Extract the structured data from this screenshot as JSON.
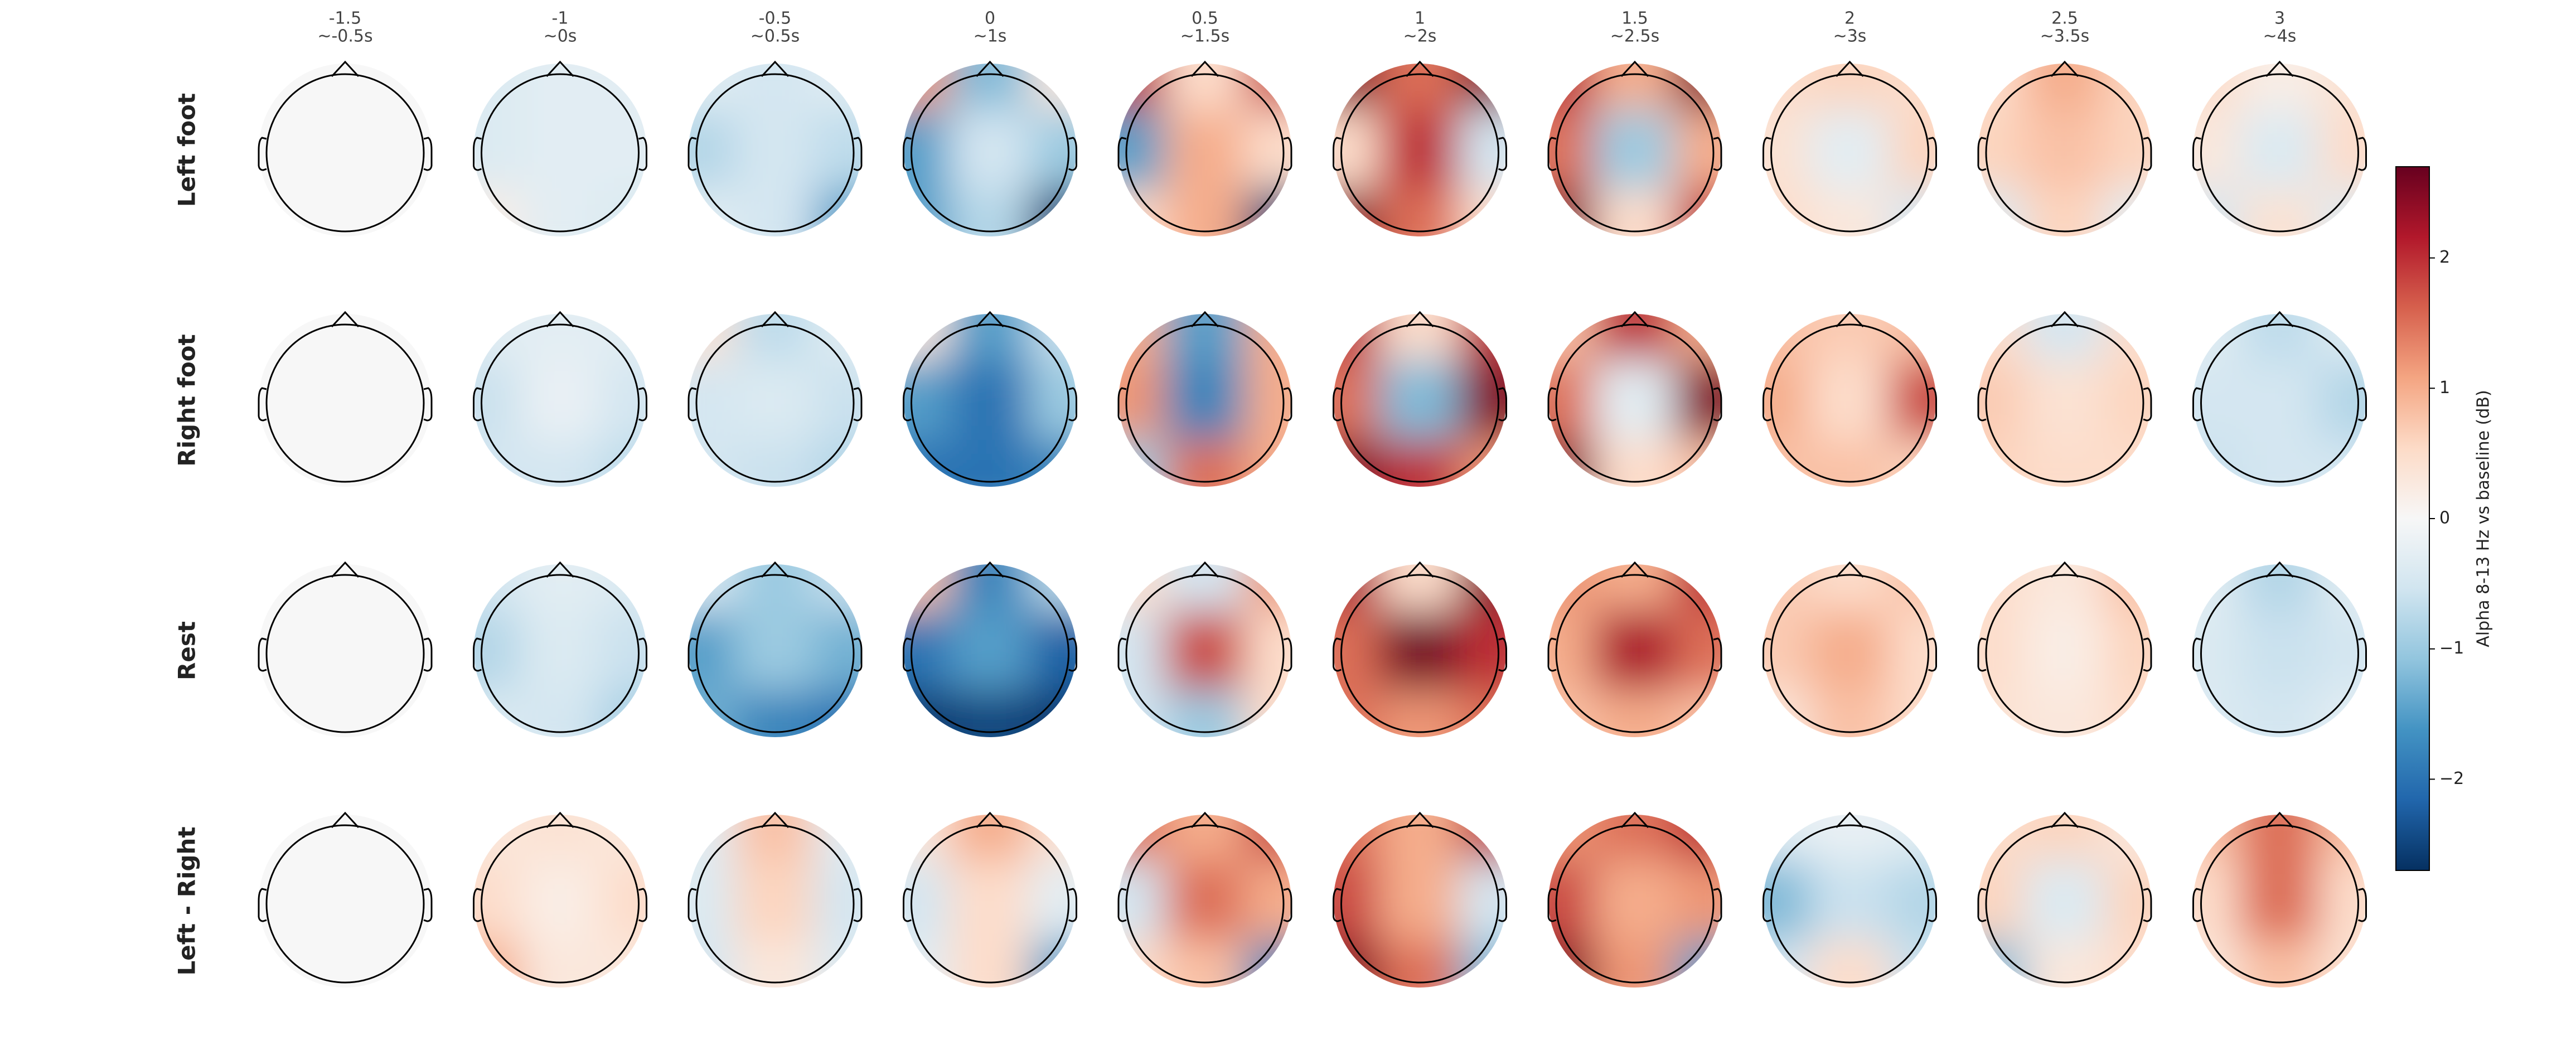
{
  "chart_data": {
    "type": "topomap",
    "columns": [
      {
        "time": "-1.5",
        "window": "~-0.5s"
      },
      {
        "time": "-1",
        "window": "~0s"
      },
      {
        "time": "-0.5",
        "window": "~0.5s"
      },
      {
        "time": "0",
        "window": "~1s"
      },
      {
        "time": "0.5",
        "window": "~1.5s"
      },
      {
        "time": "1",
        "window": "~2s"
      },
      {
        "time": "1.5",
        "window": "~2.5s"
      },
      {
        "time": "2",
        "window": "~3s"
      },
      {
        "time": "2.5",
        "window": "~3.5s"
      },
      {
        "time": "3",
        "window": "~4s"
      }
    ],
    "rows": [
      "Left foot",
      "Right foot",
      "Rest",
      "Left - Right"
    ],
    "maps": [
      [
        [
          0,
          0,
          0,
          0,
          0,
          0,
          0,
          0,
          0
        ],
        [
          -0.4,
          -0.3,
          -0.3,
          -0.4,
          -0.3,
          -0.3,
          0.2,
          -0.3,
          -0.4
        ],
        [
          -0.3,
          -0.5,
          -0.3,
          -0.8,
          -0.5,
          -0.7,
          -0.3,
          -0.5,
          -1.5
        ],
        [
          1.2,
          -1.2,
          0.3,
          -1.5,
          -0.5,
          -1.0,
          -1.5,
          -0.8,
          -2.6
        ],
        [
          2.0,
          0.5,
          1.8,
          -1.5,
          1.0,
          0.5,
          0.5,
          1.0,
          -2.5
        ],
        [
          2.5,
          1.5,
          2.5,
          0.5,
          2.0,
          -0.5,
          2.5,
          1.5,
          0.5
        ],
        [
          2.0,
          1.0,
          2.5,
          1.5,
          -1.0,
          1.0,
          2.5,
          0.5,
          2.0
        ],
        [
          0.5,
          0.6,
          0.5,
          0.4,
          -0.3,
          0.6,
          0.5,
          0.3,
          -0.5
        ],
        [
          0.5,
          1.0,
          0.6,
          0.6,
          0.8,
          0.6,
          -0.4,
          0.6,
          -0.3
        ],
        [
          0.5,
          0.2,
          0.4,
          0.3,
          -0.4,
          0.5,
          -0.5,
          0.4,
          -0.4
        ]
      ],
      [
        [
          0,
          0,
          0,
          0,
          0,
          0,
          0,
          0,
          0
        ],
        [
          -0.3,
          -0.3,
          -0.3,
          -0.6,
          -0.2,
          -0.5,
          -0.5,
          -0.5,
          -0.7
        ],
        [
          0.4,
          -0.7,
          -0.3,
          -0.5,
          -0.4,
          -0.6,
          -0.5,
          -0.6,
          -0.8
        ],
        [
          0.3,
          -1.5,
          -0.6,
          -1.5,
          -2.0,
          -1.0,
          -2.0,
          -2.0,
          -1.8
        ],
        [
          1.0,
          -1.5,
          1.0,
          1.2,
          -1.8,
          1.0,
          -1.0,
          1.5,
          1.0
        ],
        [
          2.0,
          0.5,
          2.0,
          1.5,
          -1.2,
          2.5,
          2.5,
          2.0,
          1.2
        ],
        [
          0.8,
          2.0,
          1.0,
          1.5,
          -0.3,
          2.5,
          2.5,
          0.5,
          0.8
        ],
        [
          0.8,
          0.7,
          0.8,
          1.0,
          0.5,
          1.8,
          0.8,
          0.8,
          0.6
        ],
        [
          0.5,
          -0.5,
          0.5,
          0.7,
          0.4,
          0.6,
          0.6,
          0.5,
          0.5
        ],
        [
          -0.3,
          -0.7,
          -0.3,
          -0.5,
          -0.5,
          -0.8,
          -0.6,
          -0.5,
          -0.5
        ]
      ],
      [
        [
          0,
          0,
          0,
          0,
          0,
          0,
          0,
          0,
          0
        ],
        [
          -0.5,
          -0.3,
          -0.4,
          -0.8,
          -0.4,
          -0.6,
          -0.4,
          -0.5,
          -0.9
        ],
        [
          -0.4,
          -1.0,
          -0.6,
          -1.5,
          -1.0,
          -1.3,
          -1.3,
          -1.8,
          -2.0
        ],
        [
          0.8,
          -1.8,
          -0.7,
          -2.0,
          -1.5,
          -2.2,
          -2.6,
          -2.5,
          -2.6
        ],
        [
          0.5,
          -0.5,
          1.2,
          -0.5,
          1.8,
          0.5,
          -0.5,
          -1.0,
          0.5
        ],
        [
          2.2,
          0.5,
          2.5,
          1.5,
          2.6,
          2.0,
          1.5,
          1.2,
          1.5
        ],
        [
          1.2,
          1.0,
          2.0,
          1.0,
          2.2,
          1.5,
          0.8,
          1.0,
          0.8
        ],
        [
          0.7,
          0.5,
          0.8,
          0.7,
          1.0,
          0.5,
          0.3,
          0.8,
          0.5
        ],
        [
          0.5,
          0.3,
          0.8,
          0.5,
          0.2,
          0.6,
          0.4,
          0.3,
          0.5
        ],
        [
          -0.3,
          -0.8,
          -0.3,
          -0.4,
          -0.6,
          -0.5,
          -0.4,
          -0.5,
          -0.3
        ]
      ],
      [
        [
          0,
          0,
          0,
          0,
          0,
          0,
          0,
          0,
          0
        ],
        [
          0.3,
          0.4,
          0.3,
          0.5,
          0.2,
          0.5,
          1.0,
          0.3,
          0.3
        ],
        [
          -0.3,
          0.8,
          -0.3,
          -0.4,
          0.6,
          -0.5,
          -0.5,
          0.3,
          -0.4
        ],
        [
          0.3,
          1.0,
          0.4,
          -0.5,
          0.5,
          -0.3,
          -0.3,
          0.5,
          -1.5
        ],
        [
          1.5,
          1.0,
          1.8,
          -0.5,
          1.5,
          1.0,
          0.5,
          0.8,
          -1.8
        ],
        [
          1.5,
          1.0,
          2.0,
          1.8,
          1.0,
          -0.5,
          2.5,
          1.5,
          -1.2
        ],
        [
          1.2,
          1.5,
          2.0,
          1.8,
          1.0,
          1.2,
          2.5,
          1.2,
          -1.5
        ],
        [
          -0.3,
          -0.2,
          -0.3,
          -1.2,
          -0.6,
          -0.8,
          -0.5,
          0.5,
          -0.6
        ],
        [
          0.5,
          0.6,
          0.3,
          0.6,
          -0.4,
          0.6,
          -1.2,
          0.3,
          0.5
        ],
        [
          0.8,
          1.5,
          0.8,
          0.5,
          1.5,
          0.5,
          0.3,
          0.8,
          0.4
        ]
      ]
    ],
    "cmap": [
      "#053061",
      "#2166ac",
      "#4393c3",
      "#92c5de",
      "#d1e5f0",
      "#f7f7f7",
      "#fddbc7",
      "#f4a582",
      "#d6604d",
      "#b2182b",
      "#67001f"
    ],
    "colorbar": {
      "label": "Alpha 8-13 Hz vs baseline (dB)",
      "lim": [
        -2.7,
        2.7
      ],
      "ticks": [
        {
          "value": -2,
          "label": "−2"
        },
        {
          "value": -1,
          "label": "−1"
        },
        0,
        1,
        2
      ]
    }
  }
}
